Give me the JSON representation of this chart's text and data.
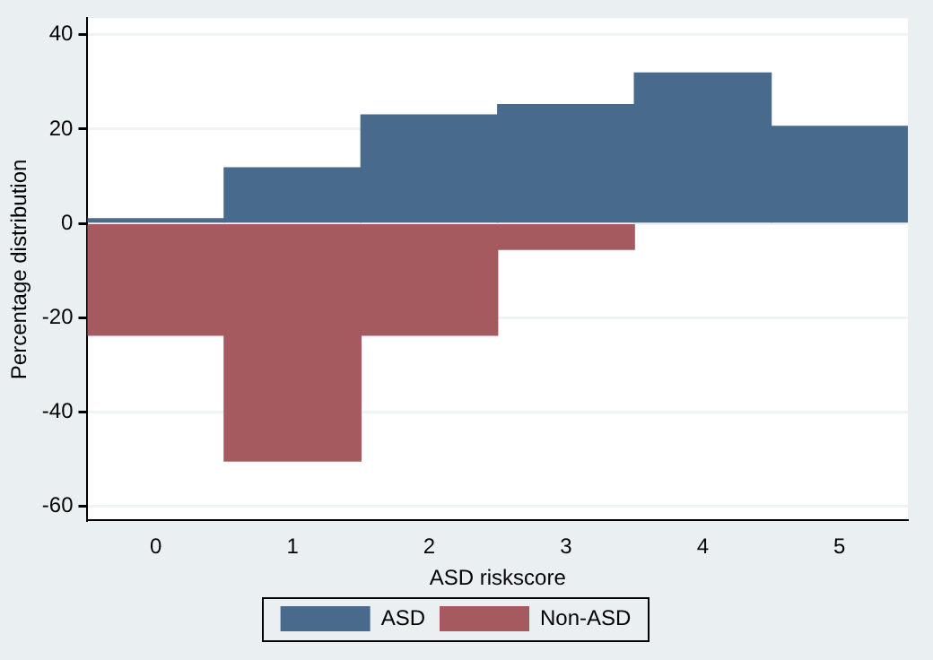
{
  "chart_data": {
    "type": "bar",
    "xlabel": "ASD riskscore",
    "ylabel": "Percentage distribution",
    "categories": [
      "0",
      "1",
      "2",
      "3",
      "4",
      "5"
    ],
    "series": [
      {
        "name": "ASD",
        "color": "#486b8d",
        "values": [
          1.0,
          11.8,
          23.0,
          25.2,
          31.9,
          20.6
        ]
      },
      {
        "name": "Non-ASD",
        "color": "#a55a60",
        "values": [
          -23.7,
          -50.4,
          -23.7,
          -5.5,
          null,
          null
        ]
      }
    ],
    "stacked": true,
    "ylim": [
      -63,
      43.5
    ],
    "yticks": [
      -60,
      -40,
      -20,
      0,
      20,
      40
    ],
    "grid": "y",
    "legend": "bottom"
  }
}
